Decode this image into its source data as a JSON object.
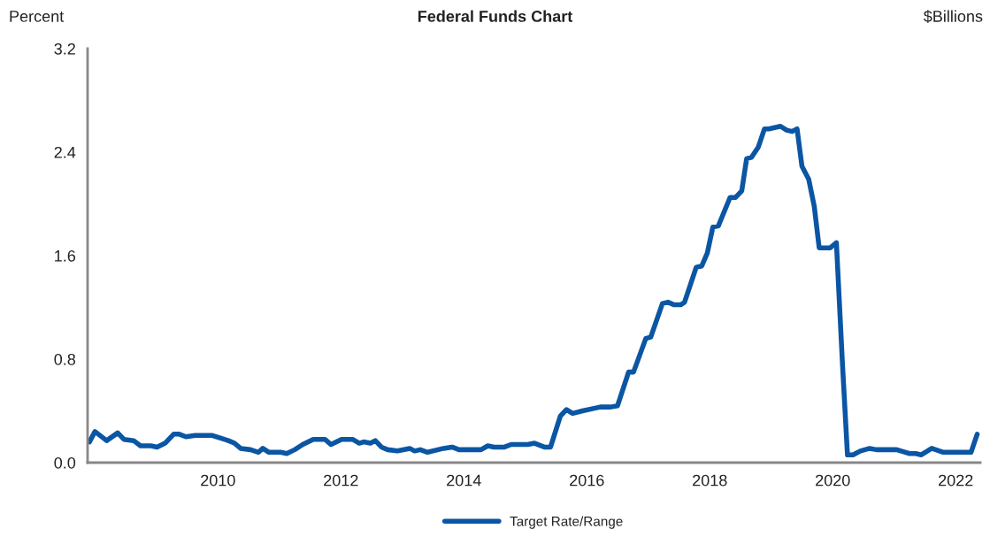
{
  "chart_data": {
    "type": "line",
    "title": "Federal Funds Chart",
    "ylabel": "Percent",
    "y2label": "$Billions",
    "x": [
      2007.91,
      2008.0,
      2008.19,
      2008.37,
      2008.47,
      2008.63,
      2008.74,
      2008.91,
      2009.01,
      2009.14,
      2009.28,
      2009.37,
      2009.48,
      2009.63,
      2009.91,
      2010.17,
      2010.27,
      2010.37,
      2010.53,
      2010.66,
      2010.73,
      2010.83,
      2010.92,
      2011.02,
      2011.12,
      2011.25,
      2011.38,
      2011.55,
      2011.74,
      2011.84,
      2012.01,
      2012.19,
      2012.3,
      2012.37,
      2012.48,
      2012.56,
      2012.66,
      2012.76,
      2012.92,
      2013.12,
      2013.2,
      2013.29,
      2013.41,
      2013.67,
      2013.81,
      2013.92,
      2014.28,
      2014.39,
      2014.49,
      2014.66,
      2014.77,
      2014.92,
      2015.04,
      2015.15,
      2015.31,
      2015.41,
      2015.57,
      2015.67,
      2015.77,
      2015.93,
      2016.22,
      2016.39,
      2016.5,
      2016.68,
      2016.76,
      2016.96,
      2017.04,
      2017.23,
      2017.32,
      2017.42,
      2017.53,
      2017.59,
      2017.78,
      2017.87,
      2017.96,
      2018.05,
      2018.14,
      2018.33,
      2018.42,
      2018.52,
      2018.6,
      2018.68,
      2018.79,
      2018.89,
      2018.96,
      2019.15,
      2019.25,
      2019.34,
      2019.42,
      2019.5,
      2019.61,
      2019.7,
      2019.78,
      2019.96,
      2020.06,
      2020.16,
      2020.24,
      2020.33,
      2020.45,
      2020.6,
      2020.71,
      2021.04,
      2021.25,
      2021.35,
      2021.44,
      2021.61,
      2021.8,
      2022.25,
      2022.35
    ],
    "series": [
      {
        "name": "Target Rate/Range",
        "color": "#0b56a4",
        "values": [
          0.16,
          0.24,
          0.17,
          0.23,
          0.18,
          0.17,
          0.13,
          0.13,
          0.12,
          0.15,
          0.22,
          0.22,
          0.2,
          0.21,
          0.21,
          0.17,
          0.15,
          0.11,
          0.1,
          0.08,
          0.11,
          0.08,
          0.08,
          0.08,
          0.07,
          0.1,
          0.14,
          0.18,
          0.18,
          0.14,
          0.18,
          0.18,
          0.15,
          0.16,
          0.15,
          0.17,
          0.12,
          0.1,
          0.09,
          0.11,
          0.09,
          0.1,
          0.08,
          0.11,
          0.12,
          0.1,
          0.1,
          0.13,
          0.12,
          0.12,
          0.14,
          0.14,
          0.14,
          0.15,
          0.12,
          0.12,
          0.36,
          0.41,
          0.38,
          0.4,
          0.43,
          0.43,
          0.44,
          0.7,
          0.7,
          0.96,
          0.97,
          1.23,
          1.24,
          1.22,
          1.22,
          1.24,
          1.51,
          1.52,
          1.62,
          1.82,
          1.83,
          2.05,
          2.05,
          2.1,
          2.35,
          2.36,
          2.44,
          2.58,
          2.58,
          2.6,
          2.57,
          2.56,
          2.58,
          2.29,
          2.19,
          1.98,
          1.66,
          1.66,
          1.7,
          0.75,
          0.06,
          0.06,
          0.09,
          0.11,
          0.1,
          0.1,
          0.07,
          0.07,
          0.06,
          0.11,
          0.08,
          0.08,
          0.22
        ]
      }
    ],
    "xlim": [
      2007.88,
      2022.4
    ],
    "xticks": [
      2010,
      2012,
      2014,
      2016,
      2018,
      2020,
      2022
    ],
    "ylim": [
      0,
      3.2
    ],
    "yticks": [
      {
        "value": 0,
        "label": "0.0"
      },
      0.8,
      1.6,
      2.4,
      3.2
    ],
    "grid": false,
    "legend": "bottom",
    "line_style": "solid",
    "marker": "none"
  }
}
